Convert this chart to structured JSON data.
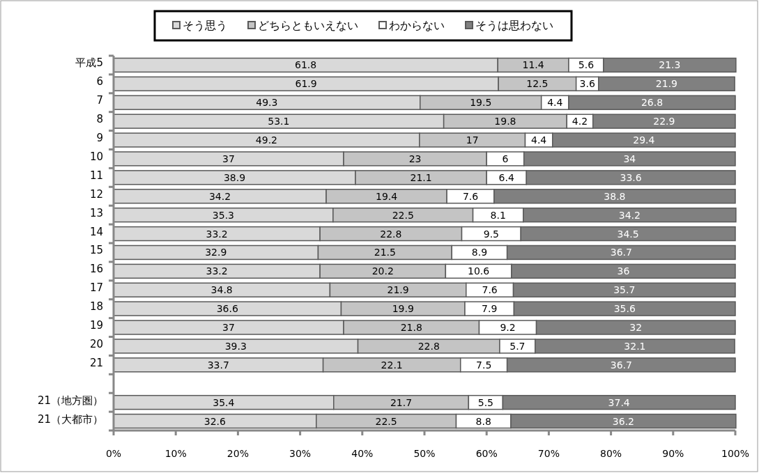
{
  "chart_data": {
    "type": "bar",
    "orientation": "horizontal",
    "stacked": true,
    "data_labels": true,
    "legend": "top",
    "grid": false,
    "categories": [
      "平成5",
      "6",
      "7",
      "8",
      "9",
      "10",
      "11",
      "12",
      "13",
      "14",
      "15",
      "16",
      "17",
      "18",
      "19",
      "20",
      "21",
      null,
      "21（地方圏）",
      "21（大都市）"
    ],
    "xlim": [
      0,
      100
    ],
    "xticks": [
      {
        "value": 0,
        "label": "0%"
      },
      {
        "value": 10,
        "label": "10%"
      },
      {
        "value": 20,
        "label": "20%"
      },
      {
        "value": 30,
        "label": "30%"
      },
      {
        "value": 40,
        "label": "40%"
      },
      {
        "value": 50,
        "label": "50%"
      },
      {
        "value": 60,
        "label": "60%"
      },
      {
        "value": 70,
        "label": "70%"
      },
      {
        "value": 80,
        "label": "80%"
      },
      {
        "value": 90,
        "label": "90%"
      },
      {
        "value": 100,
        "label": "100%"
      }
    ],
    "series": [
      {
        "name": "そう思う",
        "color": "#d9d9d9",
        "values": [
          61.8,
          61.9,
          49.3,
          53.1,
          49.2,
          37,
          38.9,
          34.2,
          35.3,
          33.2,
          32.9,
          33.2,
          34.8,
          36.6,
          37,
          39.3,
          33.7,
          null,
          35.4,
          32.6
        ]
      },
      {
        "name": "どちらともいえない",
        "color": "#c4c4c4",
        "values": [
          11.4,
          12.5,
          19.5,
          19.8,
          17,
          23,
          21.1,
          19.4,
          22.5,
          22.8,
          21.5,
          20.2,
          21.9,
          19.9,
          21.8,
          22.8,
          22.1,
          null,
          21.7,
          22.5
        ]
      },
      {
        "name": "わからない",
        "color": "#ffffff",
        "values": [
          5.6,
          3.6,
          4.4,
          4.2,
          4.4,
          6,
          6.4,
          7.6,
          8.1,
          9.5,
          8.9,
          10.6,
          7.6,
          7.9,
          9.2,
          5.7,
          7.5,
          null,
          5.5,
          8.8
        ]
      },
      {
        "name": "そうは思わない",
        "color": "#808080",
        "values": [
          21.3,
          21.9,
          26.8,
          22.9,
          29.4,
          34,
          33.6,
          38.8,
          34.2,
          34.5,
          36.7,
          36,
          35.7,
          35.6,
          32,
          32.1,
          36.7,
          null,
          37.4,
          36.2
        ]
      }
    ]
  }
}
